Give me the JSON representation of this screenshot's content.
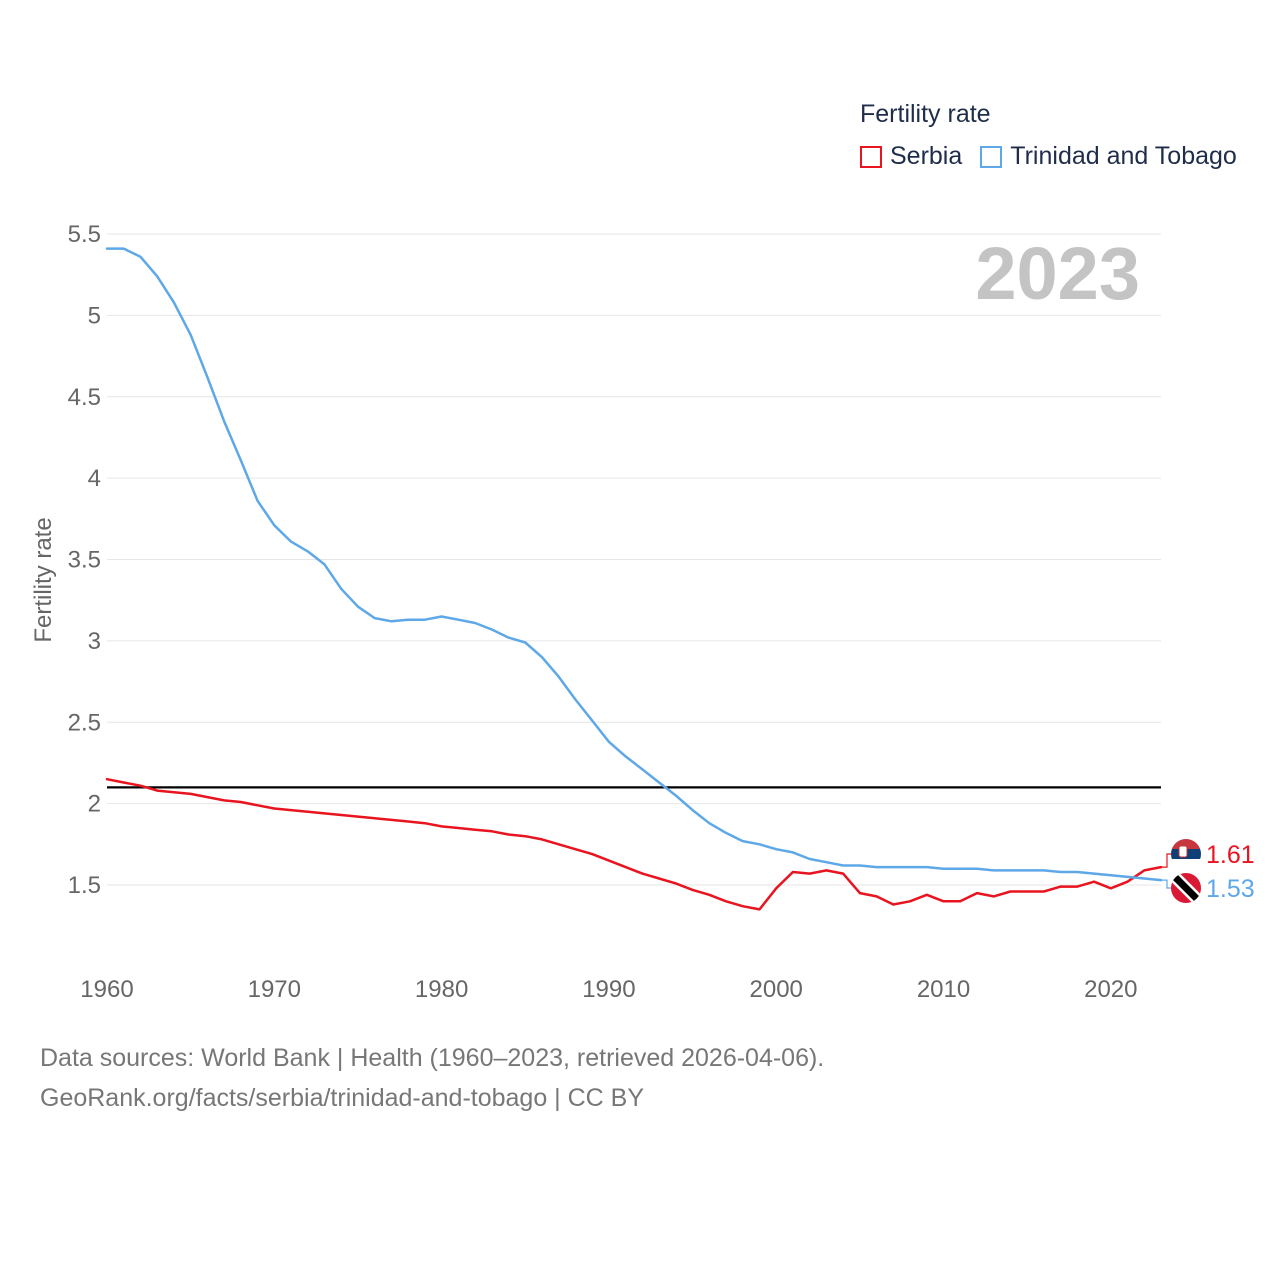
{
  "legend": {
    "title": "Fertility rate",
    "series": [
      {
        "name": "Serbia",
        "color": "#e8141f"
      },
      {
        "name": "Trinidad and Tobago",
        "color": "#5ea8e8"
      }
    ]
  },
  "watermark_year": "2023",
  "footer": {
    "line1": "Data sources: World Bank | Health (1960–2023, retrieved 2026-04-06).",
    "line2": "GeoRank.org/facts/serbia/trinidad-and-tobago | CC BY"
  },
  "chart_data": {
    "type": "line",
    "title": "Fertility rate",
    "xlabel": "",
    "ylabel": "Fertility rate",
    "xlim": [
      1960,
      2023
    ],
    "ylim": [
      1.1,
      5.5
    ],
    "x_ticks": [
      1960,
      1970,
      1980,
      1990,
      2000,
      2010,
      2020
    ],
    "y_ticks": [
      1.5,
      2,
      2.5,
      3,
      3.5,
      4,
      4.5,
      5,
      5.5
    ],
    "y_tick_labels": [
      "1.5",
      "2",
      "2.5",
      "3",
      "3.5",
      "4",
      "4.5",
      "5",
      "5.5"
    ],
    "reference_line": {
      "y": 2.1,
      "color": "#000000"
    },
    "x": [
      1960,
      1961,
      1962,
      1963,
      1964,
      1965,
      1966,
      1967,
      1968,
      1969,
      1970,
      1971,
      1972,
      1973,
      1974,
      1975,
      1976,
      1977,
      1978,
      1979,
      1980,
      1981,
      1982,
      1983,
      1984,
      1985,
      1986,
      1987,
      1988,
      1989,
      1990,
      1991,
      1992,
      1993,
      1994,
      1995,
      1996,
      1997,
      1998,
      1999,
      2000,
      2001,
      2002,
      2003,
      2004,
      2005,
      2006,
      2007,
      2008,
      2009,
      2010,
      2011,
      2012,
      2013,
      2014,
      2015,
      2016,
      2017,
      2018,
      2019,
      2020,
      2021,
      2022,
      2023
    ],
    "series": [
      {
        "name": "Serbia",
        "color": "#e8141f",
        "end_label": "1.61",
        "values": [
          2.15,
          2.13,
          2.11,
          2.08,
          2.07,
          2.06,
          2.04,
          2.02,
          2.01,
          1.99,
          1.97,
          1.96,
          1.95,
          1.94,
          1.93,
          1.92,
          1.91,
          1.9,
          1.89,
          1.88,
          1.86,
          1.85,
          1.84,
          1.83,
          1.81,
          1.8,
          1.78,
          1.75,
          1.72,
          1.69,
          1.65,
          1.61,
          1.57,
          1.54,
          1.51,
          1.47,
          1.44,
          1.4,
          1.37,
          1.35,
          1.48,
          1.58,
          1.57,
          1.59,
          1.57,
          1.45,
          1.43,
          1.38,
          1.4,
          1.44,
          1.4,
          1.4,
          1.45,
          1.43,
          1.46,
          1.46,
          1.46,
          1.49,
          1.49,
          1.52,
          1.48,
          1.52,
          1.59,
          1.61
        ]
      },
      {
        "name": "Trinidad and Tobago",
        "color": "#5ea8e8",
        "end_label": "1.53",
        "values": [
          5.41,
          5.41,
          5.36,
          5.24,
          5.08,
          4.88,
          4.62,
          4.35,
          4.11,
          3.86,
          3.71,
          3.61,
          3.55,
          3.47,
          3.32,
          3.21,
          3.14,
          3.12,
          3.13,
          3.13,
          3.15,
          3.13,
          3.11,
          3.07,
          3.02,
          2.99,
          2.9,
          2.78,
          2.64,
          2.51,
          2.38,
          2.29,
          2.21,
          2.13,
          2.05,
          1.96,
          1.88,
          1.82,
          1.77,
          1.75,
          1.72,
          1.7,
          1.66,
          1.64,
          1.62,
          1.62,
          1.61,
          1.61,
          1.61,
          1.61,
          1.6,
          1.6,
          1.6,
          1.59,
          1.59,
          1.59,
          1.59,
          1.58,
          1.58,
          1.57,
          1.56,
          1.55,
          1.54,
          1.53
        ]
      }
    ]
  }
}
